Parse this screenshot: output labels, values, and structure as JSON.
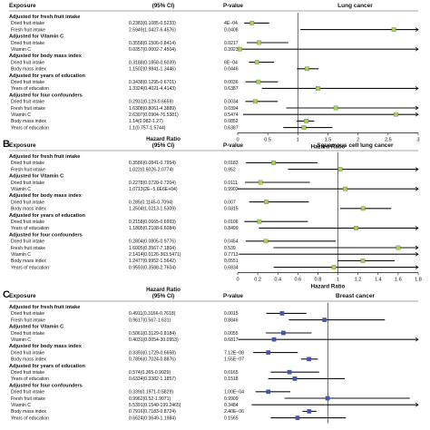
{
  "chart_data": [
    {
      "type": "forest",
      "panel_label": "",
      "headers": {
        "exposure": "Exposure",
        "hr": "(95% CI)",
        "p": "P-value"
      },
      "plot_title": "Lung cancer",
      "xlabel": "Hazard Ratio",
      "xlim": [
        0,
        3
      ],
      "xticks": [
        "0",
        "0.5",
        "1",
        "1.5",
        "2",
        "2.5",
        "3"
      ],
      "reference_line": 1,
      "marker_color": "#a8d44a",
      "rows": [
        {
          "kind": "group",
          "label": "Adjusted for fresh fruit intake"
        },
        {
          "kind": "data",
          "label": "Dried fruit intake",
          "ci_text": "0.2383(0.1085-0.5233)",
          "p": "4E−04",
          "hr": 0.2383,
          "lo": 0.1085,
          "hi": 0.5233
        },
        {
          "kind": "data",
          "label": "Fresh fruit intake",
          "ci_text": "2.5949(1.0427-6.4576)",
          "p": "0.0408",
          "hr": 2.5949,
          "lo": 1.0427,
          "hi": 6.4576
        },
        {
          "kind": "group",
          "label": "Adjusted for Vitamin C"
        },
        {
          "kind": "data",
          "label": "Dried fruit intake",
          "ci_text": "0.3558(0.1506-0.8414)",
          "p": "0.0217",
          "hr": 0.3558,
          "lo": 0.1506,
          "hi": 0.8414
        },
        {
          "kind": "data",
          "label": "Vitamin C",
          "ci_text": "0.0357(0.0002-7.4504)",
          "p": "0.3923",
          "hr": 0.0357,
          "lo": 0.0002,
          "hi": 7.4504
        },
        {
          "kind": "group",
          "label": "Adjusted for body mass index"
        },
        {
          "kind": "data",
          "label": "Dried fruit intake",
          "ci_text": "0.3188(0.1858-0.6039)",
          "p": "6E−04",
          "hr": 0.3188,
          "lo": 0.1858,
          "hi": 0.6039
        },
        {
          "kind": "data",
          "label": "Body mass index",
          "ci_text": "1.1502(0.9841-1.3446)",
          "p": "0.0446",
          "hr": 1.1502,
          "lo": 0.9841,
          "hi": 1.3446
        },
        {
          "kind": "group",
          "label": "Adjusted for years of education"
        },
        {
          "kind": "data",
          "label": "Dried fruit intake",
          "ci_text": "0.3438(0.1295-0.6701)",
          "p": "0.0036",
          "hr": 0.3438,
          "lo": 0.1295,
          "hi": 0.6701
        },
        {
          "kind": "data",
          "label": "Years of education",
          "ci_text": "1.3324(0.4021-4.4143)",
          "p": "0.6387",
          "hr": 1.3324,
          "lo": 0.4021,
          "hi": 4.4143
        },
        {
          "kind": "group",
          "label": "Adjusted for four confounders"
        },
        {
          "kind": "data",
          "label": "Dried fruit intake",
          "ci_text": "0.2931(0.129-0.6659)",
          "p": "0.0034",
          "hr": 0.2931,
          "lo": 0.129,
          "hi": 0.6659
        },
        {
          "kind": "data",
          "label": "Fresh fruit intake",
          "ci_text": "1.6308(0.8061-4.3889)",
          "p": "0.0394",
          "hr": 1.6308,
          "lo": 0.8061,
          "hi": 4.3889
        },
        {
          "kind": "data",
          "label": "Vitamin C",
          "ci_text": "2.6307(0.0904-76.5381)",
          "p": "0.5474",
          "hr": 2.6307,
          "lo": 0.0904,
          "hi": 76.5381
        },
        {
          "kind": "data",
          "label": "Body mass index",
          "ci_text": "1.14(0.982-1.27)",
          "p": "0.0852",
          "hr": 1.14,
          "lo": 0.982,
          "hi": 1.27
        },
        {
          "kind": "data",
          "label": "Years of education",
          "ci_text": "1.1(0.757-1.5744)",
          "p": "0.6387",
          "hr": 1.1,
          "lo": 0.757,
          "hi": 1.5744
        }
      ]
    },
    {
      "type": "forest",
      "panel_label": "B",
      "headers": {
        "exposure": "Exposure",
        "hr": "Hazard Ratio\n(95% CI)",
        "p": "P-value"
      },
      "plot_title": "Squamous cell lung cancer",
      "xlabel": "Hazard Ratio",
      "xlim": [
        0,
        1.8
      ],
      "xticks": [
        "0",
        "0.2",
        "0.4",
        "0.6",
        "0.8",
        "1",
        "1.2",
        "1.4",
        "1.6",
        "1.8"
      ],
      "reference_line": 1,
      "marker_color": "#a8d44a",
      "rows": [
        {
          "kind": "group",
          "label": "Adjusted for fresh fruit intake"
        },
        {
          "kind": "data",
          "label": "Dried fruit intake",
          "ci_text": "0.3586(0.0841-0.7954)",
          "p": "0.0183",
          "hr": 0.3586,
          "lo": 0.0841,
          "hi": 0.7954
        },
        {
          "kind": "data",
          "label": "Fresh fruit intake",
          "ci_text": "1.022(0.5026-2.0774)",
          "p": "0.952",
          "hr": 1.022,
          "lo": 0.5026,
          "hi": 2.0774
        },
        {
          "kind": "group",
          "label": "Adjusted for Vitamin C"
        },
        {
          "kind": "data",
          "label": "Dried fruit intake",
          "ci_text": "0.2278(0.0720-0.7204)",
          "p": "0.0111",
          "hr": 0.2278,
          "lo": 0.072,
          "hi": 0.7204
        },
        {
          "kind": "data",
          "label": "Vitamin C",
          "ci_text": "1.0713(2E−5.6E6E+04)",
          "p": "0.9902",
          "hr": 1.0713,
          "lo": 2e-05,
          "hi": 56000
        },
        {
          "kind": "group",
          "label": "Adjusted for body mass index"
        },
        {
          "kind": "data",
          "label": "Dried fruit intake",
          "ci_text": "0.285(0.1145-0.7094)",
          "p": "0.007",
          "hr": 0.285,
          "lo": 0.1145,
          "hi": 0.7094
        },
        {
          "kind": "data",
          "label": "Body mass index",
          "ci_text": "1.2504(1.0213-1.5309)",
          "p": "0.0315",
          "hr": 1.2504,
          "lo": 1.0213,
          "hi": 1.5309
        },
        {
          "kind": "group",
          "label": "Adjusted for years of education"
        },
        {
          "kind": "data",
          "label": "Dried fruit intake",
          "ci_text": "0.2158(0.0665-0.6993)",
          "p": "0.0106",
          "hr": 0.2158,
          "lo": 0.0665,
          "hi": 0.6993
        },
        {
          "kind": "data",
          "label": "Years of education",
          "ci_text": "1.1805(0.2108-6.6084)",
          "p": "0.8499",
          "hr": 1.1805,
          "lo": 0.2108,
          "hi": 6.6084
        },
        {
          "kind": "group",
          "label": "Adjusted for four confounders"
        },
        {
          "kind": "data",
          "label": "Dried fruit intake",
          "ci_text": "0.2804(0.0805-0.9776)",
          "p": "0.0454",
          "hr": 0.2804,
          "lo": 0.0805,
          "hi": 0.9776
        },
        {
          "kind": "data",
          "label": "Fresh fruit intake",
          "ci_text": "1.6005(0.3567-7.1804)",
          "p": "0.539",
          "hr": 1.6005,
          "lo": 0.3567,
          "hi": 7.1804
        },
        {
          "kind": "data",
          "label": "Vitamin C",
          "ci_text": "2.1414(0.0126-363.5471)",
          "p": "0.7713",
          "hr": 2.1414,
          "lo": 0.0126,
          "hi": 363.5471
        },
        {
          "kind": "data",
          "label": "Body mass index",
          "ci_text": "1.2477(0.9952-1.5642)",
          "p": "0.0551",
          "hr": 1.2477,
          "lo": 0.9952,
          "hi": 1.5642
        },
        {
          "kind": "data",
          "label": "Years of education",
          "ci_text": "0.9593(0.3588-2.7604)",
          "p": "0.6834",
          "hr": 0.9593,
          "lo": 0.3588,
          "hi": 2.7604
        }
      ]
    },
    {
      "type": "forest",
      "panel_label": "C",
      "headers": {
        "exposure": "Exposure",
        "hr": "Hazard Ratio\n(95% CI)",
        "p": "P-value"
      },
      "plot_title": "Breast cancer",
      "xlabel": "",
      "xlim": [
        0,
        2
      ],
      "xticks": [],
      "reference_line": 1,
      "marker_color": "#3a55c4",
      "rows": [
        {
          "kind": "group",
          "label": "Adjusted for fresh fruit intake"
        },
        {
          "kind": "data",
          "label": "Dried fruit intake",
          "ci_text": "0.4911(0.3166-0.7618)",
          "p": "0.0015",
          "hr": 0.4911,
          "lo": 0.3166,
          "hi": 0.7618
        },
        {
          "kind": "data",
          "label": "Fresh fruit intake",
          "ci_text": "0.9617(0.567-1.631)",
          "p": "0.8846",
          "hr": 0.9617,
          "lo": 0.567,
          "hi": 1.631
        },
        {
          "kind": "group",
          "label": "Adjusted for Vitamin C"
        },
        {
          "kind": "data",
          "label": "Dried fruit intake",
          "ci_text": "0.5061(0.3129-0.8184)",
          "p": "0.0055",
          "hr": 0.5061,
          "lo": 0.3129,
          "hi": 0.8184
        },
        {
          "kind": "data",
          "label": "Vitamin C",
          "ci_text": "0.4031(0.0054-30.0953)",
          "p": "0.6817",
          "hr": 0.4031,
          "lo": 0.0054,
          "hi": 30.0953
        },
        {
          "kind": "group",
          "label": "Adjusted for body mass index"
        },
        {
          "kind": "data",
          "label": "Dried fruit intake",
          "ci_text": "0.3393(0.1729-0.6658)",
          "p": "7.12E−08",
          "hr": 0.3393,
          "lo": 0.1729,
          "hi": 0.6658
        },
        {
          "kind": "data",
          "label": "Body mass index",
          "ci_text": "0.7896(0.7024-0.8876)",
          "p": "1.55E−07",
          "hr": 0.7896,
          "lo": 0.7024,
          "hi": 0.8876
        },
        {
          "kind": "group",
          "label": "Adjusted for years of education"
        },
        {
          "kind": "data",
          "label": "Dried fruit intake",
          "ci_text": "0.574(0.365-0.9029)",
          "p": "0.0165",
          "hr": 0.574,
          "lo": 0.365,
          "hi": 0.9029
        },
        {
          "kind": "data",
          "label": "Years of education",
          "ci_text": "0.6334(0.3382-1.1857)",
          "p": "0.1518",
          "hr": 0.6334,
          "lo": 0.3382,
          "hi": 1.1857
        },
        {
          "kind": "group",
          "label": "Adjusted for four confounders"
        },
        {
          "kind": "data",
          "label": "Dried fruit intake",
          "ci_text": "0.339(0.1971-0.5829)",
          "p": "1.00E−04",
          "hr": 0.339,
          "lo": 0.1971,
          "hi": 0.5829
        },
        {
          "kind": "data",
          "label": "Fresh fruit intake",
          "ci_text": "0.9962(0.52-1.9071)",
          "p": "0.9909",
          "hr": 0.9962,
          "lo": 0.52,
          "hi": 1.9071
        },
        {
          "kind": "data",
          "label": "Vitamin C",
          "ci_text": "5.5391(0.1540-199.2465)",
          "p": "0.3484",
          "hr": 5.5391,
          "lo": 0.154,
          "hi": 199.2465
        },
        {
          "kind": "data",
          "label": "Body mass index",
          "ci_text": "0.7916(0.7183-0.8724)",
          "p": "2.40E−06",
          "hr": 0.7916,
          "lo": 0.7183,
          "hi": 0.8724
        },
        {
          "kind": "data",
          "label": "Years of education",
          "ci_text": "0.6624(0.3649-1.1984)",
          "p": "0.1565",
          "hr": 0.6624,
          "lo": 0.3649,
          "hi": 1.1984
        }
      ]
    }
  ]
}
